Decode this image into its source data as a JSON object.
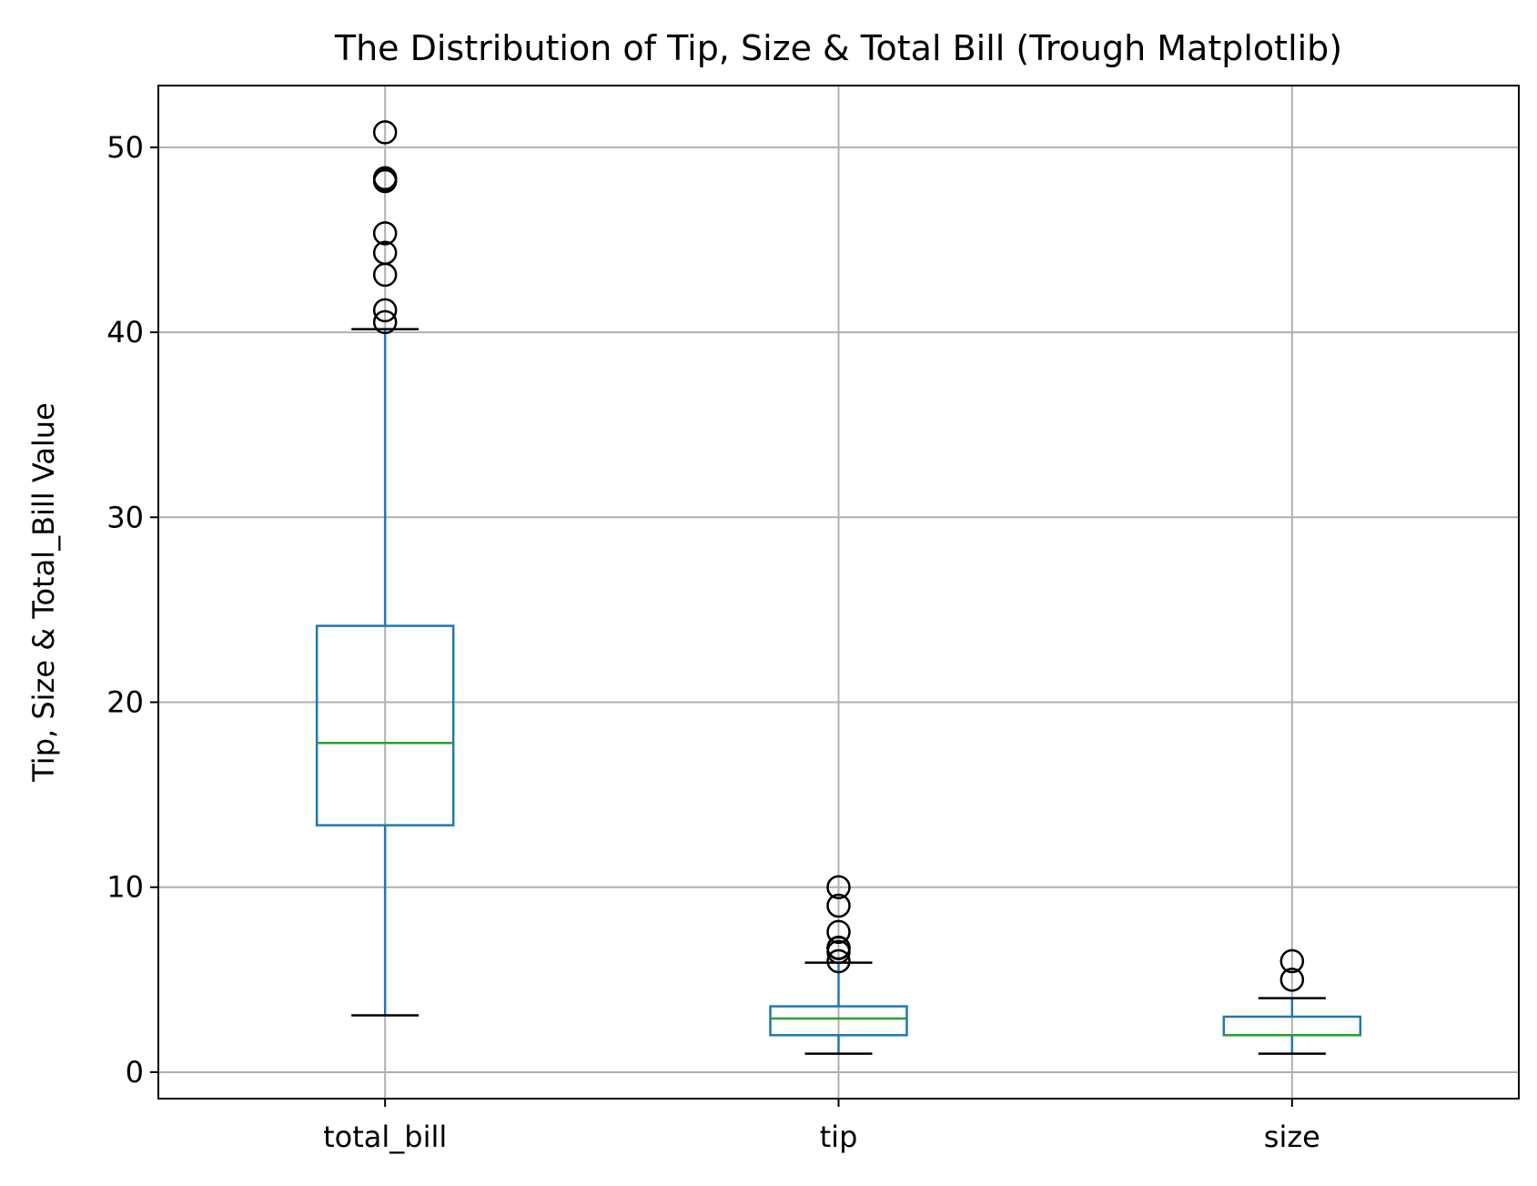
{
  "chart_data": {
    "type": "box",
    "title": "The Distribution of Tip, Size & Total Bill (Trough Matplotlib)",
    "xlabel": "",
    "ylabel": "Tip, Size & Total_Bill Value",
    "ylim": [
      -1.43,
      53.34
    ],
    "yticks": [
      0,
      10,
      20,
      30,
      40,
      50
    ],
    "grid": true,
    "colors": {
      "box": "#1f77b4",
      "median": "#2ca02c",
      "flier": "#000000",
      "cap": "#000000",
      "grid": "#b0b0b0"
    },
    "series": [
      {
        "name": "total_bill",
        "whisker_low": 3.07,
        "q1": 13.35,
        "median": 17.8,
        "q3": 24.13,
        "whisker_high": 40.17,
        "fliers": [
          40.55,
          41.19,
          43.11,
          44.3,
          45.35,
          48.17,
          48.27,
          48.33,
          50.81
        ]
      },
      {
        "name": "tip",
        "whisker_low": 1.0,
        "q1": 2.0,
        "median": 2.9,
        "q3": 3.56,
        "whisker_high": 5.92,
        "fliers": [
          6.0,
          6.5,
          6.7,
          6.73,
          7.58,
          9.0,
          10.0
        ]
      },
      {
        "name": "size",
        "whisker_low": 1,
        "q1": 2,
        "median": 2,
        "q3": 3,
        "whisker_high": 4,
        "fliers": [
          5,
          6
        ]
      }
    ]
  }
}
